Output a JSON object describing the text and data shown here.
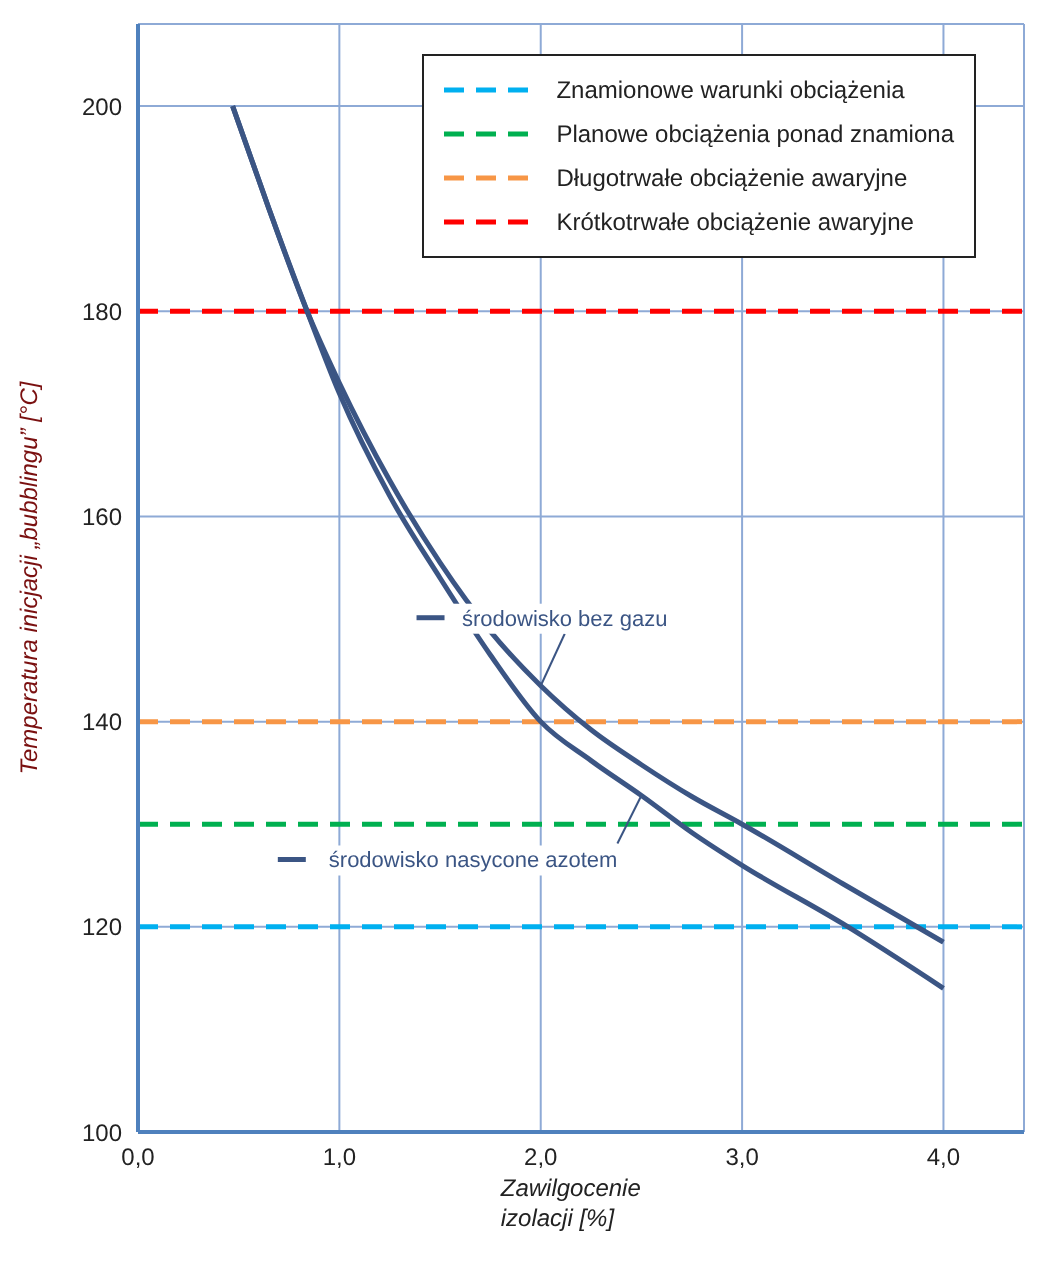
{
  "chart_data": {
    "type": "line",
    "xlabel": "Zawilgocenie izolacji [%]",
    "ylabel": "Temperatura inicjacji „bubblingu” [°C]",
    "xlim": [
      0,
      4.4
    ],
    "xticks": [
      {
        "value": 0,
        "label": "0,0"
      },
      {
        "value": 1,
        "label": "1,0"
      },
      {
        "value": 2,
        "label": "2,0"
      },
      {
        "value": 3,
        "label": "3,0"
      },
      {
        "value": 4,
        "label": "4,0"
      }
    ],
    "ylim": [
      100,
      208
    ],
    "yticks": [
      100,
      120,
      140,
      160,
      180,
      200
    ],
    "grid": true,
    "legend": "top right",
    "marker": "none",
    "line_style": "solid",
    "series": [
      {
        "name": "środowisko bez gazu",
        "color": "#3b5584",
        "x": [
          0.47,
          0.65,
          0.84,
          1.0,
          1.25,
          1.5,
          1.75,
          2.0,
          2.25,
          2.5,
          2.75,
          3.0,
          3.5,
          4.0
        ],
        "values": [
          200,
          190,
          180,
          173,
          163.5,
          155.5,
          148.8,
          143.5,
          139.2,
          135.8,
          132.7,
          130,
          124.2,
          118.5
        ]
      },
      {
        "name": "środowisko nasycone azotem",
        "color": "#3b5584",
        "x": [
          0.47,
          0.65,
          0.84,
          1.0,
          1.25,
          1.5,
          1.75,
          2.0,
          2.25,
          2.5,
          2.75,
          3.0,
          3.5,
          4.0
        ],
        "values": [
          200,
          190,
          180,
          172,
          162,
          154,
          146.5,
          140,
          136.2,
          132.8,
          129.2,
          126,
          120.3,
          114
        ]
      }
    ],
    "ref_lines": [
      {
        "axis": "y",
        "value": 120,
        "label": "Znamionowe warunki obciążenia",
        "color": "#00b0f0",
        "line_style": "dashed"
      },
      {
        "axis": "y",
        "value": 130,
        "label": "Planowe obciążenia ponad znamiona",
        "color": "#00b050",
        "line_style": "dashed"
      },
      {
        "axis": "y",
        "value": 140,
        "label": "Długotrwałe obciążenie awaryjne",
        "color": "#f79646",
        "line_style": "dashed"
      },
      {
        "axis": "y",
        "value": 180,
        "label": "Krótkotrwałe obciążenie awaryjne",
        "color": "#ff0000",
        "line_style": "dashed"
      }
    ]
  }
}
